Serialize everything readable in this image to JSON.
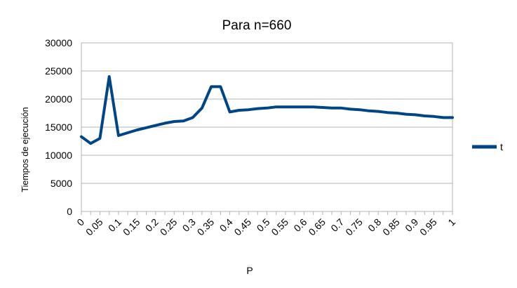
{
  "chart_data": {
    "type": "line",
    "title": "Para n=660",
    "xlabel": "P",
    "ylabel": "Tiempos de ejecución",
    "ylim": [
      0,
      30000
    ],
    "yticks": [
      "0",
      "5000",
      "10000",
      "15000",
      "20000",
      "25000",
      "30000"
    ],
    "categories": [
      "0",
      "0.05",
      "0.1",
      "0.15",
      "0.2",
      "0.25",
      "0.3",
      "0.35",
      "0.4",
      "0.45",
      "0.5",
      "0.55",
      "0.6",
      "0.65",
      "0.7",
      "0.75",
      "0.8",
      "0.85",
      "0.9",
      "0.95",
      "1"
    ],
    "x": [
      0,
      0.025,
      0.05,
      0.075,
      0.1,
      0.125,
      0.15,
      0.175,
      0.2,
      0.225,
      0.25,
      0.275,
      0.3,
      0.325,
      0.35,
      0.375,
      0.4,
      0.425,
      0.45,
      0.475,
      0.5,
      0.525,
      0.55,
      0.575,
      0.6,
      0.625,
      0.65,
      0.675,
      0.7,
      0.725,
      0.75,
      0.775,
      0.8,
      0.825,
      0.85,
      0.875,
      0.9,
      0.925,
      0.95,
      0.975,
      1
    ],
    "series": [
      {
        "name": "t",
        "color": "#004586",
        "values": [
          13300,
          12100,
          13000,
          24000,
          13500,
          14000,
          14500,
          14900,
          15300,
          15700,
          16000,
          16100,
          16700,
          18400,
          22200,
          22200,
          17700,
          18000,
          18100,
          18300,
          18400,
          18600,
          18600,
          18600,
          18600,
          18600,
          18500,
          18400,
          18400,
          18200,
          18100,
          17900,
          17800,
          17600,
          17500,
          17300,
          17200,
          17000,
          16900,
          16700,
          16700
        ]
      }
    ],
    "grid": true,
    "legend": "right"
  }
}
